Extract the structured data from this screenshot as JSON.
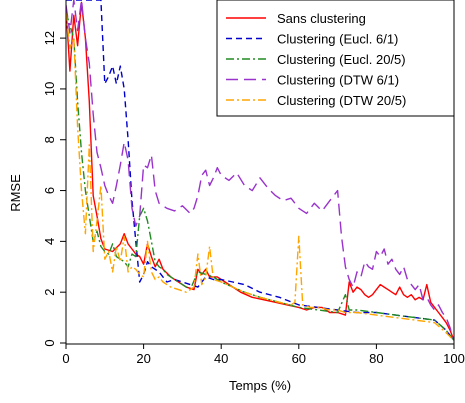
{
  "chart_data": {
    "type": "line",
    "title": "",
    "xlabel": "Temps (%)",
    "ylabel": "RMSE",
    "xlim": [
      0,
      100
    ],
    "ylim": [
      0,
      13.5
    ],
    "xticks": [
      0,
      20,
      40,
      60,
      80,
      100
    ],
    "yticks": [
      0,
      2,
      4,
      6,
      8,
      10,
      12
    ],
    "grid": false,
    "legend_position": "top-right",
    "series": [
      {
        "name": "Sans clustering",
        "color": "#ff0000",
        "dash": "solid",
        "x": [
          0,
          1,
          2,
          3,
          4,
          5,
          6,
          7,
          8,
          9,
          10,
          12,
          14,
          15,
          16,
          17,
          18,
          19,
          20,
          21,
          22,
          23,
          24,
          25,
          27,
          29,
          31,
          33,
          34,
          35,
          36,
          37,
          39,
          41,
          43,
          45,
          48,
          51,
          54,
          57,
          60,
          62,
          64,
          66,
          68,
          70,
          72,
          73,
          74,
          75,
          76,
          77,
          78,
          79,
          80,
          81,
          82,
          83,
          84,
          85,
          86,
          87,
          88,
          89,
          90,
          91,
          92,
          93,
          94,
          95,
          96,
          97,
          98,
          99,
          100
        ],
        "y": [
          13.2,
          10.7,
          12.9,
          11.7,
          13.4,
          12.0,
          9.5,
          5.8,
          5.0,
          4.1,
          3.7,
          3.6,
          3.9,
          4.3,
          3.9,
          3.7,
          3.5,
          3.4,
          3.1,
          3.9,
          3.4,
          3.0,
          3.3,
          2.9,
          2.6,
          2.4,
          2.2,
          2.1,
          2.9,
          2.7,
          2.9,
          2.6,
          2.6,
          2.4,
          2.2,
          2.0,
          1.8,
          1.7,
          1.6,
          1.5,
          1.4,
          1.3,
          1.4,
          1.4,
          1.2,
          1.2,
          1.1,
          2.4,
          2.0,
          2.2,
          2.1,
          1.9,
          1.8,
          1.9,
          2.1,
          2.3,
          2.2,
          2.1,
          2.0,
          1.9,
          2.2,
          1.9,
          1.8,
          1.9,
          1.7,
          1.8,
          1.7,
          2.3,
          1.6,
          1.4,
          1.2,
          1.0,
          0.8,
          0.5,
          0.1
        ]
      },
      {
        "name": "Clustering (Eucl. 6/1)",
        "color": "#0000cc",
        "dash": "dashed",
        "x": [
          0,
          2,
          3,
          4,
          5,
          6,
          7,
          8,
          9,
          10,
          11,
          12,
          13,
          14,
          15,
          16,
          17,
          18,
          19,
          20,
          21,
          22,
          24,
          26,
          28,
          30,
          32,
          34,
          36,
          38,
          40,
          43,
          46,
          50,
          55,
          60,
          65,
          70,
          75,
          80,
          85,
          90,
          95,
          98,
          100
        ],
        "y": [
          13.5,
          13.5,
          13.5,
          13.5,
          13.5,
          13.5,
          13.5,
          13.5,
          13.5,
          10.2,
          10.5,
          10.9,
          10.2,
          10.9,
          10.0,
          8.0,
          5.6,
          4.0,
          2.4,
          2.7,
          3.2,
          3.0,
          2.8,
          2.4,
          2.5,
          2.4,
          2.3,
          2.2,
          2.6,
          2.5,
          2.5,
          2.4,
          2.3,
          2.0,
          1.8,
          1.5,
          1.4,
          1.3,
          1.2,
          1.2,
          1.1,
          1.0,
          0.9,
          0.5,
          0.1
        ]
      },
      {
        "name": "Clustering (Eucl. 20/5)",
        "color": "#228b22",
        "dash": "dotdash",
        "x": [
          0,
          1,
          2,
          3,
          4,
          5,
          6,
          7,
          8,
          9,
          10,
          11,
          12,
          13,
          14,
          15,
          16,
          17,
          18,
          19,
          20,
          21,
          22,
          23,
          24,
          25,
          26,
          28,
          30,
          32,
          34,
          36,
          38,
          40,
          43,
          46,
          50,
          55,
          60,
          65,
          70,
          72,
          73,
          75,
          80,
          85,
          90,
          95,
          98,
          100
        ],
        "y": [
          13.0,
          12.5,
          12.0,
          9.5,
          7.5,
          6.0,
          5.0,
          4.0,
          4.4,
          3.8,
          3.6,
          3.5,
          3.9,
          3.4,
          3.3,
          3.2,
          3.0,
          3.5,
          3.4,
          5.0,
          5.3,
          4.8,
          4.0,
          3.2,
          3.0,
          2.9,
          2.7,
          2.5,
          2.3,
          2.1,
          2.8,
          2.7,
          2.6,
          2.4,
          2.2,
          2.0,
          1.8,
          1.6,
          1.4,
          1.3,
          1.2,
          1.9,
          1.3,
          1.3,
          1.2,
          1.1,
          1.0,
          0.9,
          0.5,
          0.1
        ]
      },
      {
        "name": "Clustering (DTW 6/1)",
        "color": "#9933cc",
        "dash": "longdash",
        "x": [
          0,
          1,
          2,
          3,
          4,
          5,
          6,
          7,
          8,
          9,
          10,
          11,
          12,
          13,
          14,
          15,
          16,
          17,
          18,
          19,
          20,
          21,
          22,
          23,
          24,
          25,
          26,
          28,
          30,
          32,
          33,
          34,
          35,
          36,
          37,
          38,
          39,
          40,
          42,
          44,
          46,
          48,
          50,
          52,
          54,
          56,
          58,
          60,
          62,
          64,
          66,
          68,
          70,
          71,
          72,
          73,
          74,
          75,
          76,
          77,
          78,
          79,
          80,
          81,
          82,
          83,
          84,
          85,
          86,
          87,
          88,
          89,
          90,
          91,
          92,
          93,
          94,
          95,
          96,
          97,
          98,
          99,
          100
        ],
        "y": [
          13.3,
          12.2,
          13.5,
          12.3,
          13.5,
          12.0,
          11.0,
          9.0,
          7.5,
          6.9,
          6.2,
          5.8,
          5.5,
          6.2,
          7.0,
          7.9,
          7.2,
          5.3,
          4.6,
          5.0,
          7.0,
          6.9,
          7.4,
          6.0,
          5.5,
          5.4,
          5.3,
          5.2,
          5.4,
          5.1,
          5.3,
          5.8,
          6.6,
          6.8,
          6.2,
          6.5,
          6.9,
          6.6,
          6.4,
          6.7,
          6.2,
          6.0,
          6.5,
          6.1,
          5.8,
          5.6,
          5.7,
          5.3,
          5.1,
          5.5,
          5.2,
          5.6,
          6.0,
          4.2,
          3.0,
          2.5,
          2.2,
          2.8,
          2.6,
          3.2,
          3.0,
          2.9,
          3.6,
          3.4,
          3.7,
          3.1,
          3.3,
          2.9,
          2.7,
          3.0,
          2.5,
          2.3,
          2.1,
          2.3,
          1.7,
          1.8,
          1.5,
          1.3,
          1.5,
          1.2,
          1.0,
          0.6,
          0.1
        ]
      },
      {
        "name": "Clustering (DTW 20/5)",
        "color": "#ffa500",
        "dash": "dotdash",
        "x": [
          0,
          1,
          2,
          3,
          4,
          5,
          6,
          7,
          8,
          9,
          10,
          11,
          12,
          13,
          14,
          15,
          16,
          17,
          18,
          19,
          20,
          21,
          22,
          23,
          24,
          25,
          27,
          29,
          31,
          33,
          34,
          35,
          36,
          37,
          38,
          40,
          43,
          46,
          50,
          55,
          58,
          59,
          60,
          61,
          63,
          65,
          68,
          70,
          72,
          75,
          80,
          85,
          90,
          95,
          98,
          100
        ],
        "y": [
          13.0,
          11.6,
          12.0,
          8.5,
          6.0,
          4.3,
          7.8,
          3.6,
          4.8,
          6.2,
          3.3,
          3.6,
          2.8,
          3.8,
          3.2,
          4.2,
          2.8,
          3.0,
          2.9,
          2.7,
          2.6,
          4.0,
          2.8,
          2.5,
          2.6,
          2.4,
          2.2,
          2.1,
          2.0,
          2.2,
          3.5,
          2.3,
          2.6,
          3.8,
          2.5,
          2.4,
          2.2,
          2.0,
          1.8,
          1.6,
          1.5,
          1.6,
          4.2,
          1.5,
          1.4,
          1.4,
          1.3,
          1.3,
          1.2,
          1.2,
          1.1,
          1.0,
          0.9,
          0.8,
          0.4,
          0.1
        ]
      }
    ]
  }
}
